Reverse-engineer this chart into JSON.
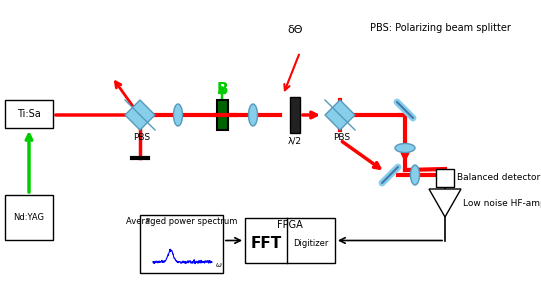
{
  "background_color": "#ffffff",
  "beam_color": "#ff0000",
  "green_color": "#00cc00",
  "cyan_color": "#87ceeb",
  "dark_green": "#006400",
  "labels": {
    "TiSa": "Ti:Sa",
    "NdYAG": "Nd:YAG",
    "PBS1": "PBS",
    "PBS2": "PBS",
    "PBS_label": "PBS: Polarizing beam splitter",
    "half_wave": "λ/2",
    "B": "B",
    "delta_theta": "δΘ",
    "balanced": "Balanced detector",
    "amplifier": "Low noise HF-amplifier",
    "avg_spectrum": "Averaged power spectrum",
    "FPGA": "FPGA",
    "FFT": "FFT",
    "Digitizer": "Digitizer",
    "P": "P",
    "omega": "ω"
  }
}
